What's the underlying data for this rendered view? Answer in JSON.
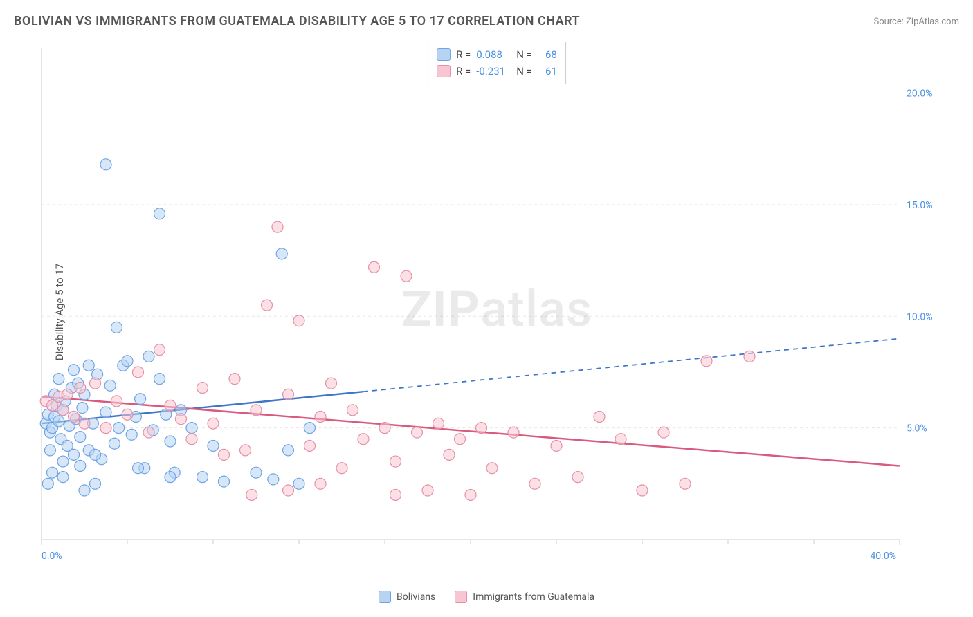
{
  "title": "BOLIVIAN VS IMMIGRANTS FROM GUATEMALA DISABILITY AGE 5 TO 17 CORRELATION CHART",
  "source": "Source: ZipAtlas.com",
  "y_axis_label": "Disability Age 5 to 17",
  "watermark": {
    "bold": "ZIP",
    "rest": "atlas"
  },
  "chart": {
    "type": "scatter",
    "xlim": [
      0,
      40
    ],
    "ylim": [
      0,
      22
    ],
    "x_ticks": [
      0,
      40
    ],
    "x_tick_labels": [
      "0.0%",
      "40.0%"
    ],
    "x_minor_ticks": [
      4,
      8,
      12,
      16,
      20,
      24,
      28,
      32,
      36
    ],
    "y_ticks": [
      5,
      10,
      15,
      20
    ],
    "y_tick_labels": [
      "5.0%",
      "10.0%",
      "15.0%",
      "20.0%"
    ],
    "grid_color": "#e8e8e8",
    "axis_color": "#cccccc",
    "background_color": "#ffffff",
    "marker_radius": 8,
    "marker_opacity": 0.55,
    "marker_stroke_width": 1.2,
    "tick_label_color": "#4a90e2",
    "tick_label_fontsize": 14,
    "series": [
      {
        "name": "Bolivians",
        "fill": "#b7d3f2",
        "stroke": "#6ca4e6",
        "line_color": "#3e76c8",
        "R": "0.088",
        "N": "68",
        "trend": {
          "x1": 0,
          "y1": 5.2,
          "x2": 40,
          "y2": 9.0,
          "solid_until_x": 15
        },
        "points": [
          [
            0.2,
            5.2
          ],
          [
            0.3,
            5.6
          ],
          [
            0.4,
            4.8
          ],
          [
            0.5,
            5.0
          ],
          [
            0.6,
            5.5
          ],
          [
            0.7,
            6.0
          ],
          [
            0.8,
            5.3
          ],
          [
            0.9,
            4.5
          ],
          [
            1.0,
            5.8
          ],
          [
            1.1,
            6.2
          ],
          [
            1.2,
            4.2
          ],
          [
            1.3,
            5.1
          ],
          [
            1.4,
            6.8
          ],
          [
            1.5,
            3.8
          ],
          [
            1.6,
            5.4
          ],
          [
            1.7,
            7.0
          ],
          [
            1.8,
            4.6
          ],
          [
            1.9,
            5.9
          ],
          [
            2.0,
            6.5
          ],
          [
            2.2,
            4.0
          ],
          [
            2.4,
            5.2
          ],
          [
            2.6,
            7.4
          ],
          [
            2.8,
            3.6
          ],
          [
            3.0,
            5.7
          ],
          [
            3.2,
            6.9
          ],
          [
            3.4,
            4.3
          ],
          [
            3.6,
            5.0
          ],
          [
            3.8,
            7.8
          ],
          [
            4.0,
            8.0
          ],
          [
            4.2,
            4.7
          ],
          [
            4.4,
            5.5
          ],
          [
            4.6,
            6.3
          ],
          [
            4.8,
            3.2
          ],
          [
            5.0,
            8.2
          ],
          [
            5.2,
            4.9
          ],
          [
            5.5,
            7.2
          ],
          [
            5.8,
            5.6
          ],
          [
            6.0,
            4.4
          ],
          [
            6.2,
            3.0
          ],
          [
            6.5,
            5.8
          ],
          [
            2.5,
            2.5
          ],
          [
            1.0,
            2.8
          ],
          [
            3.5,
            9.5
          ],
          [
            2.0,
            2.2
          ],
          [
            7.0,
            5.0
          ],
          [
            7.5,
            2.8
          ],
          [
            8.0,
            4.2
          ],
          [
            8.5,
            2.6
          ],
          [
            3.0,
            16.8
          ],
          [
            5.5,
            14.6
          ],
          [
            11.2,
            12.8
          ],
          [
            10.0,
            3.0
          ],
          [
            10.8,
            2.7
          ],
          [
            11.5,
            4.0
          ],
          [
            12.0,
            2.5
          ],
          [
            12.5,
            5.0
          ],
          [
            1.5,
            7.6
          ],
          [
            0.8,
            7.2
          ],
          [
            2.2,
            7.8
          ],
          [
            1.0,
            3.5
          ],
          [
            0.5,
            3.0
          ],
          [
            0.3,
            2.5
          ],
          [
            1.8,
            3.3
          ],
          [
            2.5,
            3.8
          ],
          [
            4.5,
            3.2
          ],
          [
            6.0,
            2.8
          ],
          [
            0.6,
            6.5
          ],
          [
            0.4,
            4.0
          ]
        ]
      },
      {
        "name": "Immigrants from Guatemala",
        "fill": "#f7c6d2",
        "stroke": "#e68fa8",
        "line_color": "#d85a7e",
        "R": "-0.231",
        "N": "61",
        "trend": {
          "x1": 0,
          "y1": 6.4,
          "x2": 40,
          "y2": 3.3,
          "solid_until_x": 40
        },
        "points": [
          [
            0.2,
            6.2
          ],
          [
            0.5,
            6.0
          ],
          [
            0.8,
            6.4
          ],
          [
            1.0,
            5.8
          ],
          [
            1.2,
            6.5
          ],
          [
            1.5,
            5.5
          ],
          [
            1.8,
            6.8
          ],
          [
            2.0,
            5.2
          ],
          [
            2.5,
            7.0
          ],
          [
            3.0,
            5.0
          ],
          [
            3.5,
            6.2
          ],
          [
            4.0,
            5.6
          ],
          [
            4.5,
            7.5
          ],
          [
            5.0,
            4.8
          ],
          [
            5.5,
            8.5
          ],
          [
            6.0,
            6.0
          ],
          [
            6.5,
            5.4
          ],
          [
            7.0,
            4.5
          ],
          [
            7.5,
            6.8
          ],
          [
            8.0,
            5.2
          ],
          [
            8.5,
            3.8
          ],
          [
            9.0,
            7.2
          ],
          [
            9.5,
            4.0
          ],
          [
            10.0,
            5.8
          ],
          [
            10.5,
            10.5
          ],
          [
            11.0,
            14.0
          ],
          [
            11.5,
            6.5
          ],
          [
            12.0,
            9.8
          ],
          [
            12.5,
            4.2
          ],
          [
            13.0,
            5.5
          ],
          [
            13.5,
            7.0
          ],
          [
            14.0,
            3.2
          ],
          [
            14.5,
            5.8
          ],
          [
            15.0,
            4.5
          ],
          [
            15.5,
            12.2
          ],
          [
            16.0,
            5.0
          ],
          [
            16.5,
            3.5
          ],
          [
            17.0,
            11.8
          ],
          [
            17.5,
            4.8
          ],
          [
            18.0,
            2.2
          ],
          [
            18.5,
            5.2
          ],
          [
            19.0,
            3.8
          ],
          [
            19.5,
            4.5
          ],
          [
            20.0,
            2.0
          ],
          [
            20.5,
            5.0
          ],
          [
            21.0,
            3.2
          ],
          [
            22.0,
            4.8
          ],
          [
            23.0,
            2.5
          ],
          [
            24.0,
            4.2
          ],
          [
            25.0,
            2.8
          ],
          [
            26.0,
            5.5
          ],
          [
            27.0,
            4.5
          ],
          [
            28.0,
            2.2
          ],
          [
            29.0,
            4.8
          ],
          [
            30.0,
            2.5
          ],
          [
            31.0,
            8.0
          ],
          [
            33.0,
            8.2
          ],
          [
            9.8,
            2.0
          ],
          [
            11.5,
            2.2
          ],
          [
            13.0,
            2.5
          ],
          [
            16.5,
            2.0
          ]
        ]
      }
    ]
  },
  "legend": {
    "items": [
      {
        "label": "Bolivians",
        "fill": "#b7d3f2",
        "stroke": "#6ca4e6"
      },
      {
        "label": "Immigrants from Guatemala",
        "fill": "#f7c6d2",
        "stroke": "#e68fa8"
      }
    ]
  }
}
